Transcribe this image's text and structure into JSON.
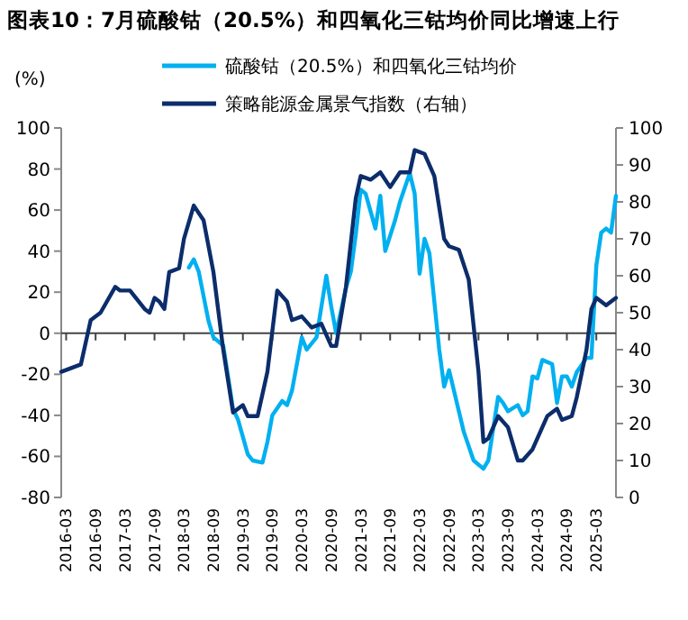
{
  "chart_data": {
    "type": "line",
    "title": "图表10：7月硫酸钴（20.5%）和四氧化三钴均价同比增速上行",
    "ylabel": "(%)",
    "xlim": [
      "2016-02",
      "2025-07"
    ],
    "xticks": [
      "2016-03",
      "2016-09",
      "2017-03",
      "2017-09",
      "2018-03",
      "2018-09",
      "2019-03",
      "2019-09",
      "2020-03",
      "2020-09",
      "2021-03",
      "2021-09",
      "2022-03",
      "2022-09",
      "2023-03",
      "2023-09",
      "2024-03",
      "2024-09",
      "2025-03"
    ],
    "ylim": [
      -80,
      100
    ],
    "yticks": [
      -80,
      -60,
      -40,
      -20,
      0,
      20,
      40,
      60,
      80,
      100
    ],
    "y2lim": [
      0,
      100
    ],
    "y2ticks": [
      0,
      10,
      20,
      30,
      40,
      50,
      60,
      70,
      80,
      90,
      100
    ],
    "legend": "top",
    "marker": "none",
    "line_style": "solid",
    "series": [
      {
        "name": "硫酸钴（20.5%）和四氧化三钴均价",
        "color": "#00b0f0",
        "x": [
          "2018-04",
          "2018-05",
          "2018-06",
          "2018-08",
          "2018-09",
          "2018-11",
          "2019-01",
          "2019-02",
          "2019-04",
          "2019-05",
          "2019-07",
          "2019-08",
          "2019-09",
          "2019-11",
          "2019-12",
          "2020-01",
          "2020-03",
          "2020-04",
          "2020-06",
          "2020-08",
          "2020-09",
          "2020-10",
          "2020-12",
          "2021-01",
          "2021-02",
          "2021-03",
          "2021-04",
          "2021-06",
          "2021-07",
          "2021-08",
          "2021-10",
          "2021-11",
          "2022-01",
          "2022-02",
          "2022-03",
          "2022-04",
          "2022-05",
          "2022-07",
          "2022-08",
          "2022-09",
          "2022-10",
          "2022-12",
          "2023-02",
          "2023-04",
          "2023-05",
          "2023-07",
          "2023-08",
          "2023-09",
          "2023-11",
          "2023-12",
          "2024-01",
          "2024-02",
          "2024-03",
          "2024-04",
          "2024-06",
          "2024-07",
          "2024-08",
          "2024-09",
          "2024-10",
          "2024-11",
          "2025-01",
          "2025-02",
          "2025-03",
          "2025-04",
          "2025-05",
          "2025-06",
          "2025-07"
        ],
        "values": [
          32,
          36,
          30,
          6,
          -2,
          -6,
          -37,
          -42,
          -59,
          -62,
          -63,
          -53,
          -40,
          -33,
          -35,
          -28,
          -2,
          -8,
          -2,
          28,
          13,
          0,
          22,
          30,
          48,
          70,
          68,
          51,
          67,
          40,
          55,
          64,
          78,
          68,
          29,
          46,
          39,
          -8,
          -26,
          -18,
          -28,
          -48,
          -62,
          -66,
          -62,
          -31,
          -34,
          -38,
          -35,
          -40,
          -38,
          -21,
          -22,
          -13,
          -15,
          -34,
          -21,
          -21,
          -26,
          -19,
          -12,
          -12,
          33,
          49,
          51,
          49,
          67
        ]
      },
      {
        "name": "策略能源金属景气指数（右轴）",
        "color": "#0c2d6b",
        "axis": "y2",
        "x": [
          "2016-02",
          "2016-06",
          "2016-08",
          "2016-10",
          "2017-01",
          "2017-02",
          "2017-04",
          "2017-07",
          "2017-08",
          "2017-09",
          "2017-10",
          "2017-11",
          "2017-12",
          "2018-02",
          "2018-03",
          "2018-05",
          "2018-07",
          "2018-09",
          "2018-11",
          "2019-01",
          "2019-03",
          "2019-04",
          "2019-06",
          "2019-08",
          "2019-10",
          "2019-12",
          "2020-01",
          "2020-03",
          "2020-05",
          "2020-07",
          "2020-09",
          "2020-10",
          "2020-12",
          "2021-02",
          "2021-03",
          "2021-05",
          "2021-07",
          "2021-09",
          "2021-11",
          "2022-01",
          "2022-02",
          "2022-04",
          "2022-06",
          "2022-08",
          "2022-09",
          "2022-11",
          "2023-01",
          "2023-03",
          "2023-04",
          "2023-05",
          "2023-07",
          "2023-09",
          "2023-11",
          "2023-12",
          "2024-02",
          "2024-05",
          "2024-07",
          "2024-08",
          "2024-10",
          "2024-11",
          "2025-01",
          "2025-02",
          "2025-03",
          "2025-05",
          "2025-07"
        ],
        "values": [
          34,
          36,
          48,
          50,
          57,
          56,
          56,
          51,
          50,
          54,
          53,
          51,
          61,
          62,
          70,
          79,
          75,
          61,
          40,
          23,
          25,
          22,
          22,
          34,
          56,
          53,
          48,
          49,
          46,
          47,
          41,
          41,
          57,
          81,
          87,
          86,
          88,
          84,
          88,
          88,
          94,
          93,
          87,
          70,
          68,
          67,
          59,
          34,
          15,
          16,
          22,
          19,
          10,
          10,
          13,
          22,
          24,
          21,
          22,
          27,
          40,
          51,
          54,
          52,
          54
        ]
      }
    ]
  }
}
